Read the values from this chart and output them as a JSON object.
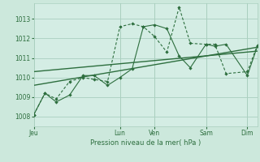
{
  "xlabel": "Pression niveau de la mer( hPa )",
  "background_color": "#cce8dc",
  "plot_bg_color": "#d4ede4",
  "grid_color": "#aacfbf",
  "line_color": "#2d6e3e",
  "tick_label_color": "#2d6e3e",
  "xlabel_color": "#2d6e3e",
  "ylim": [
    1007.5,
    1013.8
  ],
  "day_labels": [
    "Jeu",
    "Lun",
    "Ven",
    "Sam",
    "Dim"
  ],
  "day_positions": [
    0.0,
    0.385,
    0.54,
    0.77,
    0.955
  ],
  "xlim": [
    0.0,
    1.0
  ],
  "x_series1": [
    0.0,
    0.05,
    0.1,
    0.16,
    0.22,
    0.27,
    0.33,
    0.385,
    0.44,
    0.49,
    0.54,
    0.595,
    0.65,
    0.7,
    0.77,
    0.81,
    0.86,
    0.955,
    1.0
  ],
  "y_series1": [
    1008.1,
    1009.2,
    1008.75,
    1009.1,
    1010.1,
    1010.1,
    1009.6,
    1010.0,
    1010.45,
    1012.6,
    1012.7,
    1012.5,
    1011.1,
    1010.5,
    1011.7,
    1011.6,
    1011.7,
    1010.1,
    1011.6
  ],
  "x_series2": [
    0.0,
    0.05,
    0.1,
    0.16,
    0.22,
    0.27,
    0.33,
    0.385,
    0.44,
    0.49,
    0.54,
    0.595,
    0.65,
    0.7,
    0.77,
    0.81,
    0.86,
    0.955,
    1.0
  ],
  "y_series2": [
    1008.1,
    1009.2,
    1008.9,
    1009.8,
    1010.0,
    1009.9,
    1009.8,
    1012.6,
    1012.75,
    1012.6,
    1012.1,
    1011.3,
    1013.6,
    1011.75,
    1011.7,
    1011.7,
    1010.2,
    1010.3,
    1011.65
  ],
  "trend1_x": [
    0.0,
    1.0
  ],
  "trend1_y": [
    1009.6,
    1011.55
  ],
  "trend2_x": [
    0.0,
    1.0
  ],
  "trend2_y": [
    1010.3,
    1011.35
  ]
}
